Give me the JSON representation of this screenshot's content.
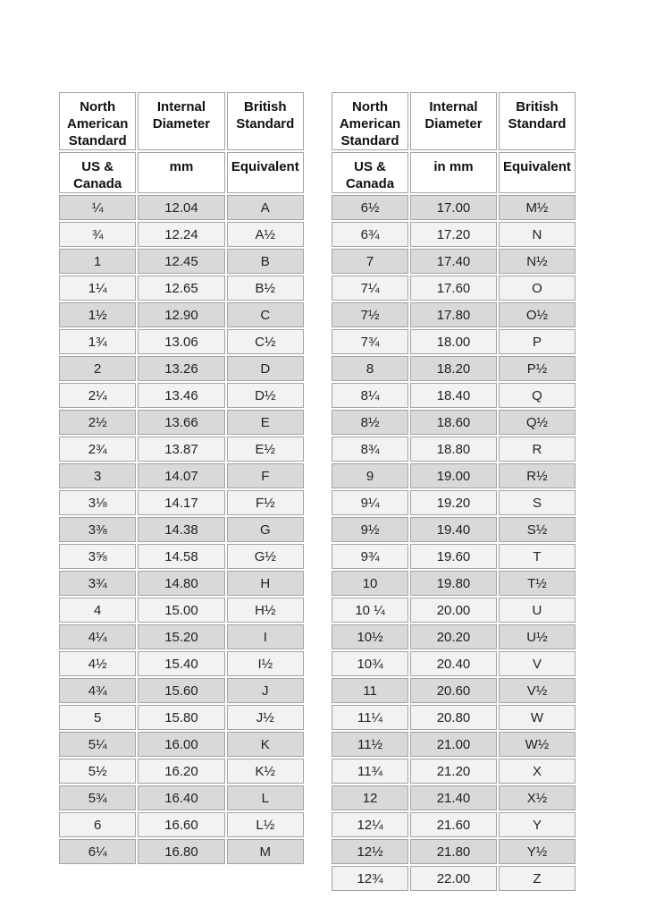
{
  "colors": {
    "row_dark": "#d9d9d9",
    "row_light": "#f2f2f2",
    "cell_border": "#a3a3a3",
    "header_bg": "#ffffff",
    "text": "#222222"
  },
  "left_table": {
    "header_row1": [
      "North American Standard",
      "Internal Diameter",
      "British Standard"
    ],
    "header_row2": [
      "US & Canada",
      "mm",
      "Equivalent"
    ],
    "rows": [
      [
        "¼",
        "12.04",
        "A"
      ],
      [
        "¾",
        "12.24",
        "A½"
      ],
      [
        "1",
        "12.45",
        "B"
      ],
      [
        "1¼",
        "12.65",
        "B½"
      ],
      [
        "1½",
        "12.90",
        "C"
      ],
      [
        "1¾",
        "13.06",
        "C½"
      ],
      [
        "2",
        "13.26",
        "D"
      ],
      [
        "2¼",
        "13.46",
        "D½"
      ],
      [
        "2½",
        "13.66",
        "E"
      ],
      [
        "2¾",
        "13.87",
        "E½"
      ],
      [
        "3",
        "14.07",
        "F"
      ],
      [
        "3⅛",
        "14.17",
        "F½"
      ],
      [
        "3⅜",
        "14.38",
        "G"
      ],
      [
        "3⅝",
        "14.58",
        "G½"
      ],
      [
        "3¾",
        "14.80",
        "H"
      ],
      [
        "4",
        "15.00",
        "H½"
      ],
      [
        "4¼",
        "15.20",
        "I"
      ],
      [
        "4½",
        "15.40",
        "I½"
      ],
      [
        "4¾",
        "15.60",
        "J"
      ],
      [
        "5",
        "15.80",
        "J½"
      ],
      [
        "5¼",
        "16.00",
        "K"
      ],
      [
        "5½",
        "16.20",
        "K½"
      ],
      [
        "5¾",
        "16.40",
        "L"
      ],
      [
        "6",
        "16.60",
        "L½"
      ],
      [
        "6¼",
        "16.80",
        "M"
      ]
    ]
  },
  "right_table": {
    "header_row1": [
      "North American Standard",
      "Internal Diameter",
      "British Standard"
    ],
    "header_row2": [
      "US & Canada",
      "in mm",
      "Equivalent"
    ],
    "rows": [
      [
        "6½",
        "17.00",
        "M½"
      ],
      [
        "6¾",
        "17.20",
        "N"
      ],
      [
        "7",
        "17.40",
        "N½"
      ],
      [
        "7¼",
        "17.60",
        "O"
      ],
      [
        "7½",
        "17.80",
        "O½"
      ],
      [
        "7¾",
        "18.00",
        "P"
      ],
      [
        "8",
        "18.20",
        "P½"
      ],
      [
        "8¼",
        "18.40",
        "Q"
      ],
      [
        "8½",
        "18.60",
        "Q½"
      ],
      [
        "8¾",
        "18.80",
        "R"
      ],
      [
        "9",
        "19.00",
        "R½"
      ],
      [
        "9¼",
        "19.20",
        "S"
      ],
      [
        "9½",
        "19.40",
        "S½"
      ],
      [
        "9¾",
        "19.60",
        "T"
      ],
      [
        "10",
        "19.80",
        "T½"
      ],
      [
        "10 ¼",
        "20.00",
        "U"
      ],
      [
        "10½",
        "20.20",
        "U½"
      ],
      [
        "10¾",
        "20.40",
        "V"
      ],
      [
        "11",
        "20.60",
        "V½"
      ],
      [
        "11¼",
        "20.80",
        "W"
      ],
      [
        "11½",
        "21.00",
        "W½"
      ],
      [
        "11¾",
        "21.20",
        "X"
      ],
      [
        "12",
        "21.40",
        "X½"
      ],
      [
        "12¼",
        "21.60",
        "Y"
      ],
      [
        "12½",
        "21.80",
        "Y½"
      ],
      [
        "12¾",
        "22.00",
        "Z"
      ]
    ]
  }
}
